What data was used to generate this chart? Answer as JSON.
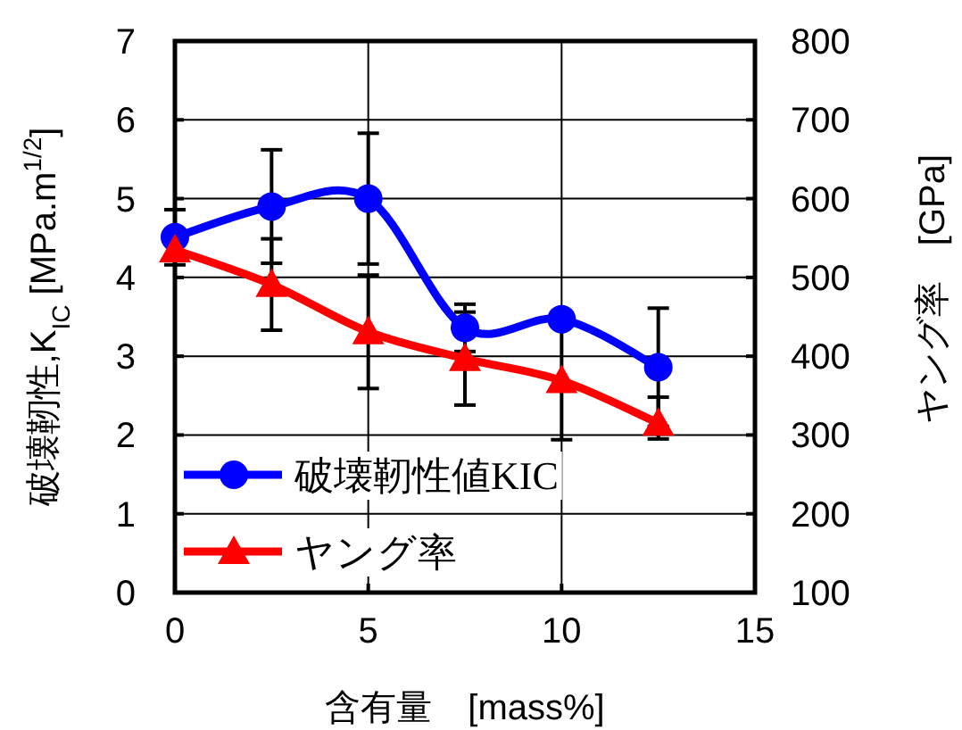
{
  "chart_data": {
    "type": "line",
    "xlabel": "含有量　[mass%]",
    "ylabel": "破壊靭性,K$_{IC}$ [MPa.m$^{1/2}$]",
    "y2label": "ヤング率　[GPa]",
    "x": [
      0,
      2.5,
      5,
      7.5,
      10,
      12.5
    ],
    "series": [
      {
        "name": "破壊靭性値KIC",
        "color": "#0000ff",
        "marker": "circle",
        "values": [
          4.51,
          4.9,
          5.0,
          3.36,
          3.47,
          2.86
        ],
        "errors": [
          0.35,
          0.72,
          0.83,
          0.3,
          null,
          0.75
        ]
      },
      {
        "name": "ヤング率",
        "color": "#ff0000",
        "marker": "triangle",
        "axis": "y2",
        "values": [
          535,
          491,
          431,
          397,
          369,
          315
        ],
        "errors": [
          null,
          58,
          72,
          59,
          75,
          [
            295,
            348
          ]
        ]
      }
    ],
    "xlim": [
      0,
      15
    ],
    "xticks": [
      0,
      5,
      10,
      15
    ],
    "ylim": [
      0,
      7
    ],
    "yticks": [
      0,
      1,
      2,
      3,
      4,
      5,
      6,
      7
    ],
    "y2lim": [
      100,
      800
    ],
    "y2ticks": [
      100,
      200,
      300,
      400,
      500,
      600,
      700,
      800
    ],
    "grid": true,
    "legend": "bottom left",
    "line_style": "solid"
  }
}
